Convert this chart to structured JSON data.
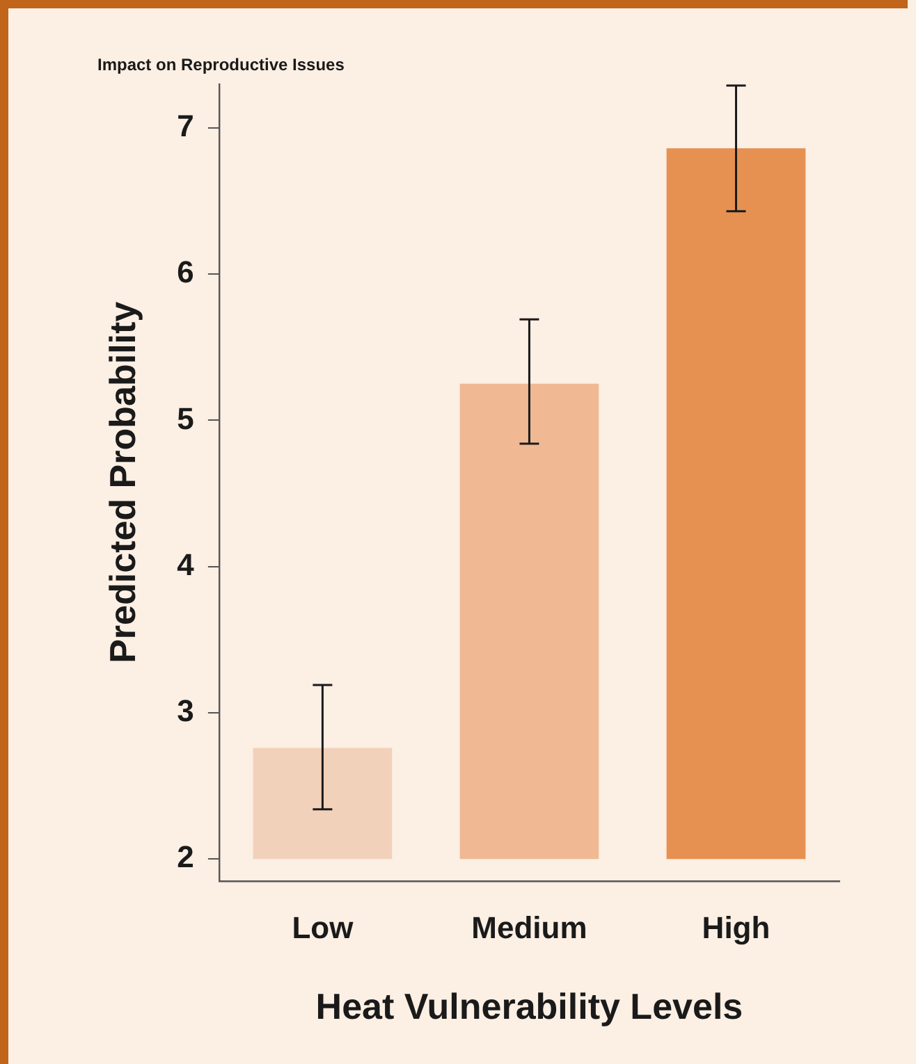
{
  "chart_data": {
    "type": "bar",
    "title": "Impact on Reproductive Issues",
    "xlabel": "Heat Vulnerability Levels",
    "ylabel": "Predicted Probability",
    "categories": [
      "Low",
      "Medium",
      "High"
    ],
    "base": [
      2,
      2,
      2
    ],
    "values": [
      0.76,
      3.25,
      4.86
    ],
    "errors": [
      [
        2.34,
        3.19
      ],
      [
        4.84,
        5.69
      ],
      [
        6.43,
        7.29
      ]
    ],
    "colors": [
      "#f2d1ba",
      "#f0b994",
      "#e69152"
    ],
    "ylim": [
      1.85,
      7.3
    ],
    "yticks": [
      2,
      3,
      4,
      5,
      6,
      7
    ],
    "grid": false,
    "legend": false
  }
}
